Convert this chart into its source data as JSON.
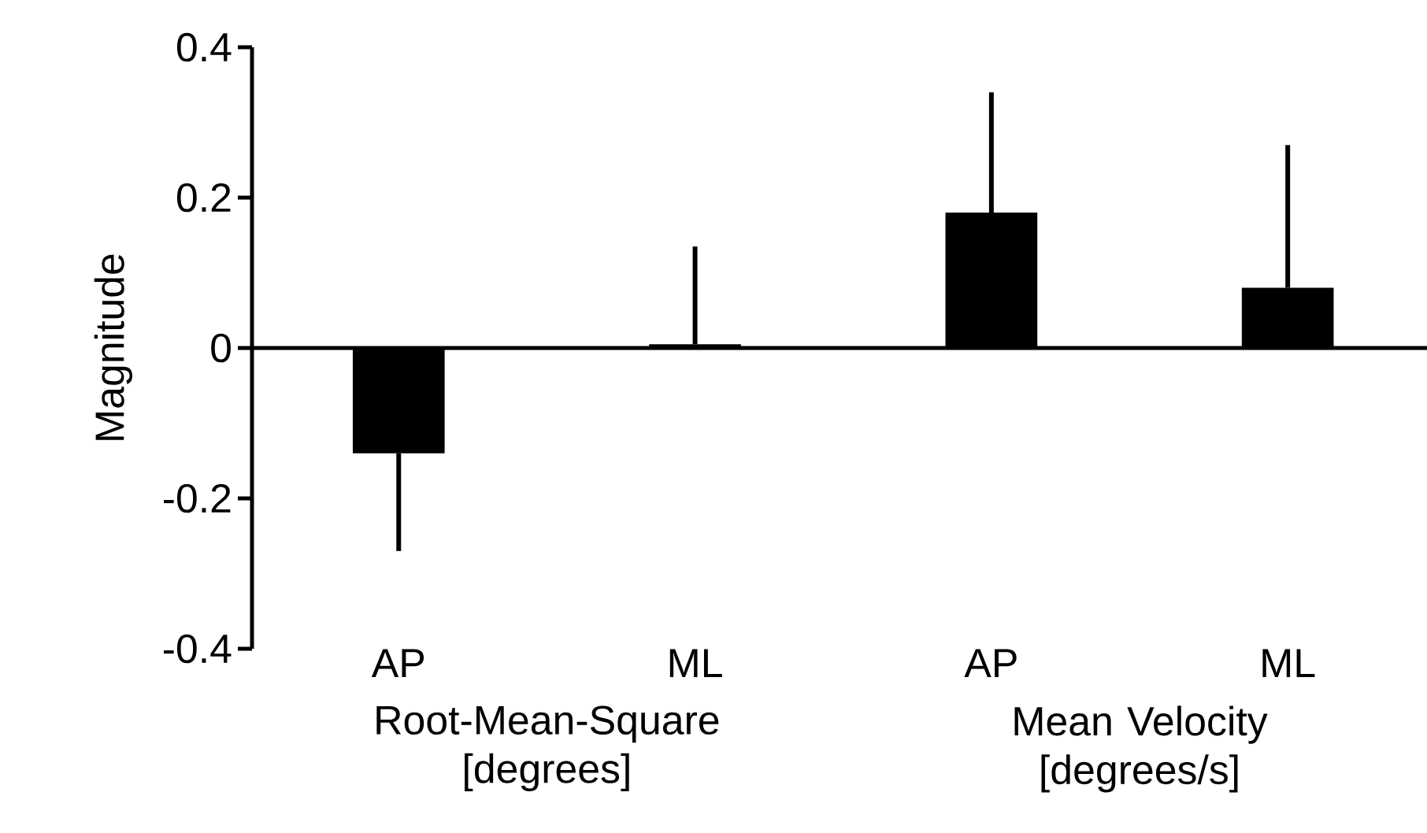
{
  "chart_data": {
    "type": "bar",
    "ylabel": "Magnitude",
    "categories": [
      "AP",
      "ML",
      "AP",
      "ML"
    ],
    "values": [
      -0.14,
      0.005,
      0.18,
      0.08
    ],
    "errors": [
      [
        -0.27,
        -0.14
      ],
      [
        0.005,
        0.135
      ],
      [
        0.18,
        0.34
      ],
      [
        0.08,
        0.27
      ]
    ],
    "color": "#000000",
    "ylim": [
      -0.4,
      0.4
    ],
    "yticks": [
      -0.4,
      -0.2,
      0,
      0.2,
      0.4
    ],
    "annotations": [
      "Root-Mean-Square [degrees]",
      "Mean Velocity [degrees/s]"
    ]
  }
}
